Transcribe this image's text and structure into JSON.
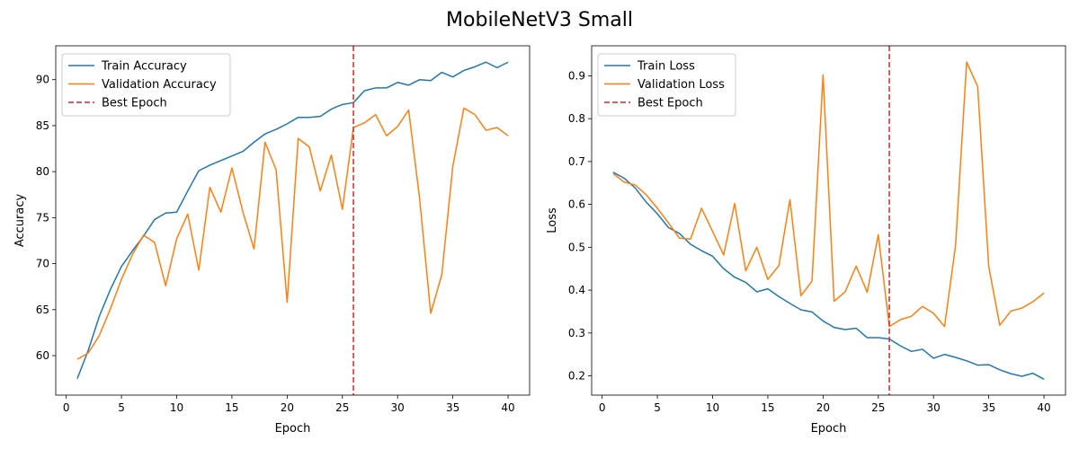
{
  "figure": {
    "title": "MobileNetV3 Small"
  },
  "chart_data": [
    {
      "type": "line",
      "xlabel": "Epoch",
      "ylabel": "Accuracy",
      "xlim": [
        -0.95,
        41.95
      ],
      "ylim": [
        55.71,
        93.68
      ],
      "xticks": [
        0,
        5,
        10,
        15,
        20,
        25,
        30,
        35,
        40
      ],
      "yticks": [
        60,
        65,
        70,
        75,
        80,
        85,
        90
      ],
      "legend_position": "upper-left",
      "grid": false,
      "x": [
        1,
        2,
        3,
        4,
        5,
        6,
        7,
        8,
        9,
        10,
        11,
        12,
        13,
        14,
        15,
        16,
        17,
        18,
        19,
        20,
        21,
        22,
        23,
        24,
        25,
        26,
        27,
        28,
        29,
        30,
        31,
        32,
        33,
        34,
        35,
        36,
        37,
        38,
        39,
        40
      ],
      "series": [
        {
          "name": "Train Accuracy",
          "color": "#1f77b4",
          "style": "solid",
          "values": [
            57.5,
            60.6,
            64.3,
            67.2,
            69.7,
            71.4,
            73.0,
            74.8,
            75.5,
            75.6,
            77.9,
            80.1,
            80.7,
            81.2,
            81.7,
            82.2,
            83.2,
            84.1,
            84.6,
            85.2,
            85.9,
            85.9,
            86.0,
            86.8,
            87.3,
            87.5,
            88.8,
            89.1,
            89.1,
            89.7,
            89.4,
            90.0,
            89.9,
            90.8,
            90.3,
            91.0,
            91.4,
            91.9,
            91.3,
            91.9
          ]
        },
        {
          "name": "Validation Accuracy",
          "color": "#ff7f0e",
          "style": "solid",
          "values": [
            59.6,
            60.3,
            62.2,
            65.1,
            68.3,
            71.0,
            73.1,
            72.3,
            67.6,
            72.7,
            75.4,
            69.3,
            78.3,
            75.6,
            80.4,
            75.6,
            71.6,
            83.2,
            80.2,
            65.8,
            83.6,
            82.7,
            77.9,
            81.8,
            75.9,
            84.8,
            85.3,
            86.2,
            83.9,
            84.9,
            86.7,
            77.0,
            64.6,
            68.8,
            80.6,
            86.9,
            86.2,
            84.5,
            84.8,
            83.9
          ]
        }
      ],
      "vline": {
        "name": "Best Epoch",
        "x": 26,
        "color": "#d62728",
        "style": "dashed"
      }
    },
    {
      "type": "line",
      "xlabel": "Epoch",
      "ylabel": "Loss",
      "xlim": [
        -0.95,
        41.95
      ],
      "ylim": [
        0.155,
        0.97
      ],
      "xticks": [
        0,
        5,
        10,
        15,
        20,
        25,
        30,
        35,
        40
      ],
      "yticks": [
        0.2,
        0.3,
        0.4,
        0.5,
        0.6,
        0.7,
        0.8,
        0.9
      ],
      "legend_position": "upper-left",
      "grid": false,
      "x": [
        1,
        2,
        3,
        4,
        5,
        6,
        7,
        8,
        9,
        10,
        11,
        12,
        13,
        14,
        15,
        16,
        17,
        18,
        19,
        20,
        21,
        22,
        23,
        24,
        25,
        26,
        27,
        28,
        29,
        30,
        31,
        32,
        33,
        34,
        35,
        36,
        37,
        38,
        39,
        40
      ],
      "series": [
        {
          "name": "Train Loss",
          "color": "#1f77b4",
          "style": "solid",
          "values": [
            0.675,
            0.661,
            0.638,
            0.605,
            0.578,
            0.546,
            0.532,
            0.507,
            0.492,
            0.479,
            0.45,
            0.43,
            0.418,
            0.396,
            0.403,
            0.385,
            0.369,
            0.354,
            0.349,
            0.328,
            0.313,
            0.308,
            0.311,
            0.289,
            0.289,
            0.286,
            0.27,
            0.257,
            0.262,
            0.241,
            0.25,
            0.243,
            0.235,
            0.225,
            0.226,
            0.214,
            0.205,
            0.199,
            0.206,
            0.192
          ]
        },
        {
          "name": "Validation Loss",
          "color": "#ff7f0e",
          "style": "solid",
          "values": [
            0.672,
            0.652,
            0.645,
            0.622,
            0.591,
            0.557,
            0.521,
            0.519,
            0.591,
            0.537,
            0.482,
            0.602,
            0.445,
            0.5,
            0.425,
            0.457,
            0.611,
            0.387,
            0.421,
            0.902,
            0.374,
            0.396,
            0.456,
            0.395,
            0.529,
            0.315,
            0.331,
            0.339,
            0.362,
            0.346,
            0.315,
            0.505,
            0.932,
            0.875,
            0.455,
            0.318,
            0.351,
            0.358,
            0.373,
            0.393
          ]
        }
      ],
      "vline": {
        "name": "Best Epoch",
        "x": 26,
        "color": "#d62728",
        "style": "dashed"
      }
    }
  ]
}
